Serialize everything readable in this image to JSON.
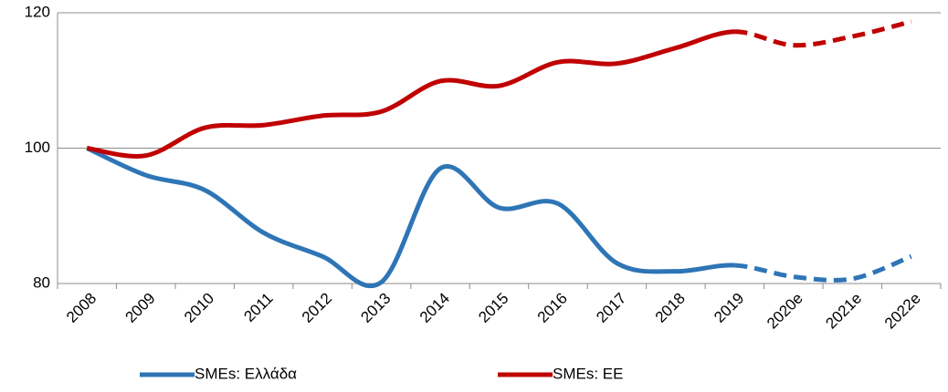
{
  "chart_data": {
    "type": "line",
    "categories": [
      "2008",
      "2009",
      "2010",
      "2011",
      "2012",
      "2013",
      "2014",
      "2015",
      "2016",
      "2017",
      "2018",
      "2019",
      "2020e",
      "2021e",
      "2022e"
    ],
    "series": [
      {
        "name": "SMEs: Ελλάδα",
        "color": "#2e75b6",
        "values": [
          100,
          96,
          93.8,
          87.5,
          84,
          80.2,
          97,
          91.2,
          91.8,
          83,
          81.8,
          82.7,
          81,
          80.7,
          84
        ]
      },
      {
        "name": "SMEs: ΕΕ",
        "color": "#c00000",
        "values": [
          100,
          98.9,
          103,
          103.4,
          104.8,
          105.4,
          109.9,
          109.2,
          112.7,
          112.5,
          114.8,
          117.2,
          115.2,
          116.5,
          118.7
        ]
      }
    ],
    "dashed_from": "2019",
    "ylim": [
      80,
      120
    ],
    "yticks": [
      80,
      100,
      120
    ],
    "grid": true,
    "legend": "bottom"
  }
}
